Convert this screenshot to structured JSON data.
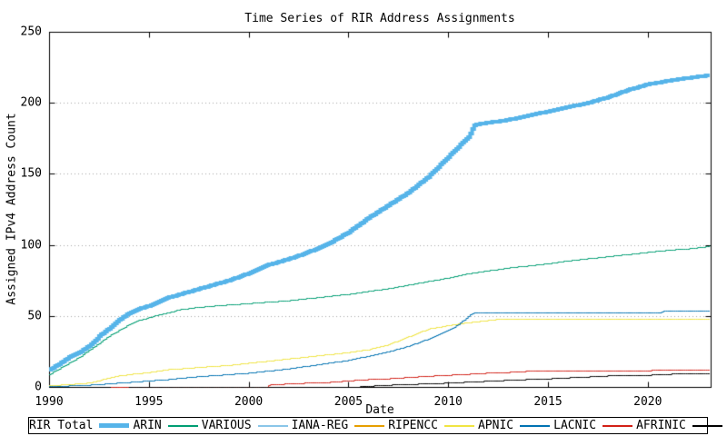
{
  "chart_data": {
    "type": "line",
    "title": "Time Series of RIR Address Assignments",
    "xlabel": "Date",
    "ylabel": "Assigned IPv4 Address Count",
    "xlim": [
      1990,
      2023.15
    ],
    "ylim": [
      0,
      250
    ],
    "x_ticks": [
      1990,
      1995,
      2000,
      2005,
      2010,
      2015,
      2020
    ],
    "y_ticks": [
      0,
      50,
      100,
      150,
      200,
      250
    ],
    "grid": "horizontal-dotted",
    "grid_color": "#a8a8a8",
    "border_color": "#000000",
    "background_color": "#ffffff",
    "legend_position": "bottom-outside-boxed",
    "interpolation": "steps",
    "series": [
      {
        "name": "RIR Total",
        "color": "#56b4e9",
        "line_width": 4,
        "points": [
          [
            1990,
            12
          ],
          [
            1990.5,
            16
          ],
          [
            1991,
            21
          ],
          [
            1991.5,
            24
          ],
          [
            1992,
            29
          ],
          [
            1992.4,
            34
          ],
          [
            1992.6,
            37
          ],
          [
            1993,
            41
          ],
          [
            1993.5,
            47
          ],
          [
            1994,
            52
          ],
          [
            1994.5,
            55
          ],
          [
            1995,
            57
          ],
          [
            1995.5,
            60
          ],
          [
            1996,
            63
          ],
          [
            1996.5,
            65
          ],
          [
            1997,
            67
          ],
          [
            1998,
            71
          ],
          [
            1999,
            75
          ],
          [
            2000,
            80
          ],
          [
            2001,
            86
          ],
          [
            2002,
            90
          ],
          [
            2003,
            95
          ],
          [
            2004,
            101
          ],
          [
            2005,
            109
          ],
          [
            2006,
            119
          ],
          [
            2007,
            128
          ],
          [
            2008,
            137
          ],
          [
            2009,
            148
          ],
          [
            2009.5,
            155
          ],
          [
            2010,
            162
          ],
          [
            2010.5,
            169
          ],
          [
            2011,
            176
          ],
          [
            2011.3,
            184
          ],
          [
            2011.5,
            185
          ],
          [
            2012,
            186
          ],
          [
            2013,
            188
          ],
          [
            2014,
            191
          ],
          [
            2015,
            194
          ],
          [
            2016,
            197
          ],
          [
            2017,
            200
          ],
          [
            2018,
            204
          ],
          [
            2019,
            209
          ],
          [
            2020,
            213
          ],
          [
            2021,
            215.5
          ],
          [
            2022,
            217.5
          ],
          [
            2023.1,
            219.5
          ]
        ]
      },
      {
        "name": "ARIN",
        "color": "#009e73",
        "line_width": 1,
        "points": [
          [
            1990,
            9
          ],
          [
            1990.5,
            13
          ],
          [
            1991,
            17
          ],
          [
            1991.5,
            21
          ],
          [
            1992,
            26
          ],
          [
            1992.5,
            31
          ],
          [
            1993,
            36
          ],
          [
            1993.5,
            40
          ],
          [
            1994,
            44
          ],
          [
            1994.5,
            47
          ],
          [
            1995,
            49
          ],
          [
            1995.5,
            51
          ],
          [
            1996,
            52.5
          ],
          [
            1996.5,
            54.5
          ],
          [
            1997,
            55.5
          ],
          [
            1998,
            57
          ],
          [
            1999,
            58
          ],
          [
            2000,
            59
          ],
          [
            2001,
            60
          ],
          [
            2002,
            61
          ],
          [
            2003,
            62.5
          ],
          [
            2004,
            64
          ],
          [
            2005,
            65.5
          ],
          [
            2006,
            67.5
          ],
          [
            2007,
            69.5
          ],
          [
            2008,
            72
          ],
          [
            2009,
            74.5
          ],
          [
            2010,
            77
          ],
          [
            2011,
            80
          ],
          [
            2012,
            82
          ],
          [
            2013,
            84
          ],
          [
            2014,
            85.5
          ],
          [
            2015,
            87
          ],
          [
            2016,
            89
          ],
          [
            2017,
            90.5
          ],
          [
            2018,
            92
          ],
          [
            2019,
            93.5
          ],
          [
            2020,
            95
          ],
          [
            2021,
            96.5
          ],
          [
            2022,
            97.5
          ],
          [
            2022.7,
            98.5
          ],
          [
            2023.1,
            99.5
          ]
        ]
      },
      {
        "name": "VARIOUS",
        "color": "#8ac6e8",
        "line_width": 1,
        "points": [
          [
            1990,
            0
          ],
          [
            2023.1,
            0
          ]
        ]
      },
      {
        "name": "IANA-REG",
        "color": "#e69f00",
        "line_width": 1,
        "points": [
          [
            1990,
            0
          ],
          [
            2023.1,
            0
          ]
        ]
      },
      {
        "name": "RIPENCC",
        "color": "#f0e442",
        "line_width": 1,
        "points": [
          [
            1990,
            1
          ],
          [
            1991,
            2
          ],
          [
            1992,
            3
          ],
          [
            1992.7,
            5.5
          ],
          [
            1993,
            6.5
          ],
          [
            1993.5,
            8
          ],
          [
            1994,
            9
          ],
          [
            1995,
            10.5
          ],
          [
            1996,
            12.5
          ],
          [
            1997,
            13.5
          ],
          [
            1998,
            14.5
          ],
          [
            1999,
            15.5
          ],
          [
            2000,
            17
          ],
          [
            2001,
            18.5
          ],
          [
            2002,
            20
          ],
          [
            2003,
            21.5
          ],
          [
            2004,
            23
          ],
          [
            2005,
            24.5
          ],
          [
            2006,
            26.5
          ],
          [
            2007,
            30
          ],
          [
            2008,
            35.5
          ],
          [
            2009,
            41
          ],
          [
            2010,
            43.5
          ],
          [
            2011,
            45.5
          ],
          [
            2012,
            47
          ],
          [
            2012.4,
            47.7
          ],
          [
            2023.1,
            47.7
          ]
        ]
      },
      {
        "name": "APNIC",
        "color": "#0072b2",
        "line_width": 1,
        "points": [
          [
            1990,
            0.5
          ],
          [
            1991,
            1
          ],
          [
            1992,
            1.5
          ],
          [
            1993,
            2.5
          ],
          [
            1994,
            3.5
          ],
          [
            1995,
            4.5
          ],
          [
            1996,
            5.5
          ],
          [
            1997,
            7
          ],
          [
            1998,
            8
          ],
          [
            1999,
            9
          ],
          [
            2000,
            10
          ],
          [
            2001,
            11.5
          ],
          [
            2002,
            13
          ],
          [
            2003,
            15
          ],
          [
            2004,
            17
          ],
          [
            2005,
            19
          ],
          [
            2006,
            22
          ],
          [
            2007,
            25
          ],
          [
            2008,
            29
          ],
          [
            2009,
            34
          ],
          [
            2010,
            40
          ],
          [
            2010.5,
            44
          ],
          [
            2011,
            50
          ],
          [
            2011.25,
            52.2
          ],
          [
            2020.5,
            52.2
          ],
          [
            2020.8,
            53.5
          ],
          [
            2023.1,
            54
          ]
        ]
      },
      {
        "name": "LACNIC",
        "color": "#d22017",
        "line_width": 1,
        "points": [
          [
            1993.1,
            0
          ],
          [
            2000.9,
            0
          ],
          [
            2001,
            1.5
          ],
          [
            2002,
            2.5
          ],
          [
            2003,
            3
          ],
          [
            2004,
            3.5
          ],
          [
            2005,
            4.5
          ],
          [
            2006,
            5.5
          ],
          [
            2007,
            6
          ],
          [
            2008,
            7
          ],
          [
            2009,
            7.8
          ],
          [
            2010,
            8.5
          ],
          [
            2011,
            9.2
          ],
          [
            2012,
            10
          ],
          [
            2013,
            10.5
          ],
          [
            2014,
            11.3
          ],
          [
            2014.8,
            11.7
          ],
          [
            2023.1,
            11.9
          ]
        ]
      },
      {
        "name": "AFRINIC",
        "color": "#000000",
        "line_width": 1,
        "points": [
          [
            1994,
            0
          ],
          [
            2005.5,
            0.3
          ],
          [
            2006,
            0.8
          ],
          [
            2007,
            1.5
          ],
          [
            2008,
            2
          ],
          [
            2009,
            2.5
          ],
          [
            2010,
            3
          ],
          [
            2011,
            3.7
          ],
          [
            2012,
            4.3
          ],
          [
            2013,
            5
          ],
          [
            2014,
            5.5
          ],
          [
            2015,
            6
          ],
          [
            2016,
            6.7
          ],
          [
            2017,
            7.3
          ],
          [
            2018,
            8
          ],
          [
            2019,
            8.3
          ],
          [
            2020,
            8.6
          ],
          [
            2021,
            8.8
          ],
          [
            2021.3,
            9.6
          ],
          [
            2023.1,
            9.8
          ]
        ]
      }
    ]
  }
}
